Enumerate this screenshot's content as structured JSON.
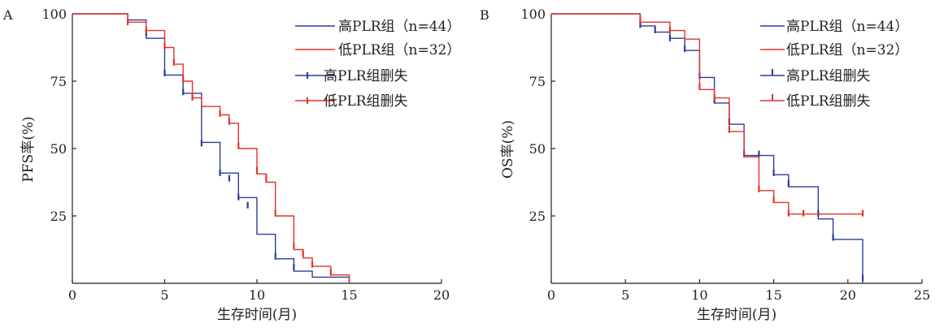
{
  "figure": {
    "panels": [
      "A",
      "B"
    ]
  },
  "colors": {
    "high": "#2b3d97",
    "low": "#e5332a",
    "axis": "#222222"
  },
  "chart_data": [
    {
      "type": "line",
      "subtype": "kaplan-meier step",
      "panel": "A",
      "title": "",
      "xlabel": "生存时间(月)",
      "ylabel": "PFS率(%)",
      "xlim": [
        0,
        20
      ],
      "ylim": [
        0,
        100
      ],
      "xticks": [
        "0",
        "5",
        "10",
        "15",
        "20"
      ],
      "yticks": [
        "100",
        "75",
        "50",
        "25"
      ],
      "grid": false,
      "legend_position": "top-right",
      "legend": [
        "高PLR组（n=44）",
        "低PLR组（n=32）",
        "高PLR组删失",
        "低PLR组删失"
      ],
      "series": [
        {
          "name": "高PLR组（n=44）",
          "color": "#2b3d97",
          "steps": [
            [
              0,
              100
            ],
            [
              3,
              97.7
            ],
            [
              4,
              90.9
            ],
            [
              5,
              77.3
            ],
            [
              6,
              70.5
            ],
            [
              7,
              52.3
            ],
            [
              8,
              40.9
            ],
            [
              9,
              31.8
            ],
            [
              10,
              18.2
            ],
            [
              11,
              9.1
            ],
            [
              12,
              4.5
            ],
            [
              13,
              2.3
            ],
            [
              15,
              0
            ]
          ],
          "censored": [
            [
              4,
              93
            ],
            [
              5,
              78
            ],
            [
              6,
              71
            ],
            [
              7,
              52
            ],
            [
              8,
              41
            ],
            [
              8.5,
              39
            ],
            [
              9,
              32
            ],
            [
              9.5,
              29
            ],
            [
              11,
              10
            ],
            [
              12,
              6
            ]
          ]
        },
        {
          "name": "低PLR组（n=32）",
          "color": "#e5332a",
          "steps": [
            [
              0,
              100
            ],
            [
              3,
              96.9
            ],
            [
              4,
              93.8
            ],
            [
              5,
              87.5
            ],
            [
              5.5,
              81.3
            ],
            [
              6,
              75
            ],
            [
              6.5,
              68.8
            ],
            [
              7,
              65.6
            ],
            [
              8,
              62.5
            ],
            [
              8.5,
              59.4
            ],
            [
              9,
              50
            ],
            [
              10,
              40.6
            ],
            [
              10.5,
              37.5
            ],
            [
              11,
              25
            ],
            [
              12,
              12.5
            ],
            [
              12.5,
              9.4
            ],
            [
              13,
              6.3
            ],
            [
              14,
              3.1
            ],
            [
              15,
              0
            ]
          ],
          "censored": [
            [
              3,
              97
            ],
            [
              4,
              94
            ],
            [
              5,
              88
            ],
            [
              5.5,
              82
            ],
            [
              6,
              76
            ],
            [
              6.5,
              69
            ],
            [
              8,
              63
            ],
            [
              8.5,
              60
            ],
            [
              9,
              51
            ],
            [
              10,
              42
            ],
            [
              10.5,
              39
            ],
            [
              11,
              26
            ],
            [
              12,
              14
            ],
            [
              12.5,
              11
            ],
            [
              13,
              7
            ],
            [
              14,
              4
            ]
          ]
        }
      ]
    },
    {
      "type": "line",
      "subtype": "kaplan-meier step",
      "panel": "B",
      "title": "",
      "xlabel": "生存时间(月)",
      "ylabel": "OS率(%)",
      "xlim": [
        0,
        25
      ],
      "ylim": [
        0,
        100
      ],
      "xticks": [
        "0",
        "5",
        "10",
        "15",
        "20",
        "25"
      ],
      "yticks": [
        "100",
        "75",
        "50",
        "25"
      ],
      "grid": false,
      "legend_position": "top-right",
      "legend": [
        "高PLR组（n=44）",
        "低PLR组（n=32）",
        "高PLR组删失",
        "低PLR组删失"
      ],
      "series": [
        {
          "name": "高PLR组（n=44）",
          "color": "#2b3d97",
          "steps": [
            [
              0,
              100
            ],
            [
              6,
              95.5
            ],
            [
              7,
              93.2
            ],
            [
              8,
              90.9
            ],
            [
              9,
              86.4
            ],
            [
              10,
              76.4
            ],
            [
              11,
              66.9
            ],
            [
              12,
              59
            ],
            [
              13,
              47.4
            ],
            [
              15,
              40.3
            ],
            [
              16,
              35.8
            ],
            [
              18,
              23.9
            ],
            [
              19,
              16.3
            ],
            [
              21,
              0
            ]
          ],
          "censored": [
            [
              6,
              96
            ],
            [
              7,
              94
            ],
            [
              8,
              91
            ],
            [
              9,
              87
            ],
            [
              10,
              77
            ],
            [
              11,
              68
            ],
            [
              12,
              60
            ],
            [
              13,
              48
            ],
            [
              14,
              48
            ],
            [
              15,
              41
            ],
            [
              16,
              37
            ],
            [
              18,
              26
            ],
            [
              19,
              17
            ],
            [
              21,
              2
            ]
          ]
        },
        {
          "name": "低PLR组（n=32）",
          "color": "#e5332a",
          "steps": [
            [
              0,
              100
            ],
            [
              6,
              96.9
            ],
            [
              8,
              93.8
            ],
            [
              9,
              90.6
            ],
            [
              10,
              71.9
            ],
            [
              11,
              68.8
            ],
            [
              12,
              56.3
            ],
            [
              13,
              46.9
            ],
            [
              14,
              34.4
            ],
            [
              15,
              30
            ],
            [
              16,
              25.7
            ],
            [
              21,
              25.7
            ]
          ],
          "censored": [
            [
              6,
              98
            ],
            [
              8,
              94
            ],
            [
              10,
              73
            ],
            [
              11,
              69
            ],
            [
              12,
              57
            ],
            [
              14,
              35
            ],
            [
              15,
              31
            ],
            [
              16,
              26
            ],
            [
              17,
              26
            ],
            [
              21,
              26
            ]
          ]
        }
      ]
    }
  ]
}
